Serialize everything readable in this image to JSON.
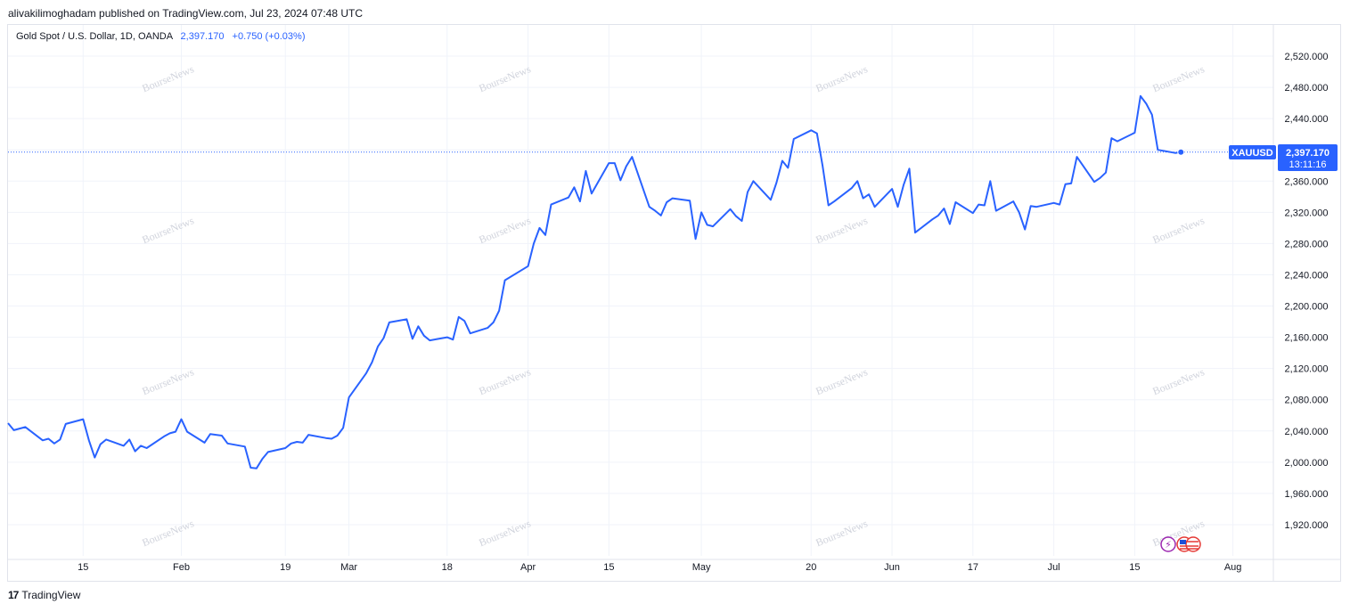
{
  "header": {
    "publisher_line": "alivakilimoghadam published on TradingView.com, Jul 23, 2024 07:48 UTC"
  },
  "legend": {
    "symbol_line": "Gold Spot / U.S. Dollar, 1D, OANDA",
    "last_value": "2,397.170",
    "change": "+0.750 (+0.03%)"
  },
  "price_label": {
    "ticker": "XAUUSD",
    "price": "2,397.170",
    "countdown": "13:11:16"
  },
  "footer": {
    "brand": "TradingView",
    "logo_text": "17"
  },
  "watermark": "BourseNews",
  "colors": {
    "line": "#2962ff",
    "grid": "#f0f3fa",
    "badge": "#2962ff"
  },
  "chart_data": {
    "type": "line",
    "title": "Gold Spot / U.S. Dollar, 1D, OANDA",
    "xlabel": "",
    "ylabel": "",
    "x_ticks": [
      {
        "date": "2024-01-15",
        "label": "15"
      },
      {
        "date": "2024-02-01",
        "label": "Feb"
      },
      {
        "date": "2024-02-19",
        "label": "19"
      },
      {
        "date": "2024-03-01",
        "label": "Mar"
      },
      {
        "date": "2024-03-18",
        "label": "18"
      },
      {
        "date": "2024-04-01",
        "label": "Apr"
      },
      {
        "date": "2024-04-15",
        "label": "15"
      },
      {
        "date": "2024-05-01",
        "label": "May"
      },
      {
        "date": "2024-05-20",
        "label": "20"
      },
      {
        "date": "2024-06-03",
        "label": "Jun"
      },
      {
        "date": "2024-06-17",
        "label": "17"
      },
      {
        "date": "2024-07-01",
        "label": "Jul"
      },
      {
        "date": "2024-07-15",
        "label": "15"
      },
      {
        "date": "2024-08-01",
        "label": "Aug"
      }
    ],
    "y_ticks": [
      "1,920.000",
      "1,960.000",
      "2,000.000",
      "2,040.000",
      "2,080.000",
      "2,120.000",
      "2,160.000",
      "2,200.000",
      "2,240.000",
      "2,280.000",
      "2,320.000",
      "2,360.000",
      "2,400.000",
      "2,440.000",
      "2,480.000",
      "2,520.000"
    ],
    "ylim": [
      1880,
      2560
    ],
    "xlim": [
      "2024-01-02",
      "2024-08-08"
    ],
    "grid": true,
    "series": [
      {
        "values": [
          {
            "x": "2024-01-02",
            "y": 2050
          },
          {
            "x": "2024-01-03",
            "y": 2041
          },
          {
            "x": "2024-01-05",
            "y": 2045
          },
          {
            "x": "2024-01-08",
            "y": 2028
          },
          {
            "x": "2024-01-09",
            "y": 2030
          },
          {
            "x": "2024-01-10",
            "y": 2024
          },
          {
            "x": "2024-01-11",
            "y": 2029
          },
          {
            "x": "2024-01-12",
            "y": 2049
          },
          {
            "x": "2024-01-15",
            "y": 2055
          },
          {
            "x": "2024-01-16",
            "y": 2028
          },
          {
            "x": "2024-01-17",
            "y": 2006
          },
          {
            "x": "2024-01-18",
            "y": 2023
          },
          {
            "x": "2024-01-19",
            "y": 2029
          },
          {
            "x": "2024-01-22",
            "y": 2021
          },
          {
            "x": "2024-01-23",
            "y": 2029
          },
          {
            "x": "2024-01-24",
            "y": 2014
          },
          {
            "x": "2024-01-25",
            "y": 2021
          },
          {
            "x": "2024-01-26",
            "y": 2018
          },
          {
            "x": "2024-01-29",
            "y": 2033
          },
          {
            "x": "2024-01-30",
            "y": 2037
          },
          {
            "x": "2024-01-31",
            "y": 2039
          },
          {
            "x": "2024-02-01",
            "y": 2055
          },
          {
            "x": "2024-02-02",
            "y": 2039
          },
          {
            "x": "2024-02-05",
            "y": 2025
          },
          {
            "x": "2024-02-06",
            "y": 2036
          },
          {
            "x": "2024-02-07",
            "y": 2035
          },
          {
            "x": "2024-02-08",
            "y": 2034
          },
          {
            "x": "2024-02-09",
            "y": 2024
          },
          {
            "x": "2024-02-12",
            "y": 2020
          },
          {
            "x": "2024-02-13",
            "y": 1993
          },
          {
            "x": "2024-02-14",
            "y": 1992
          },
          {
            "x": "2024-02-15",
            "y": 2004
          },
          {
            "x": "2024-02-16",
            "y": 2013
          },
          {
            "x": "2024-02-19",
            "y": 2018
          },
          {
            "x": "2024-02-20",
            "y": 2024
          },
          {
            "x": "2024-02-21",
            "y": 2026
          },
          {
            "x": "2024-02-22",
            "y": 2025
          },
          {
            "x": "2024-02-23",
            "y": 2035
          },
          {
            "x": "2024-02-26",
            "y": 2031
          },
          {
            "x": "2024-02-27",
            "y": 2030
          },
          {
            "x": "2024-02-28",
            "y": 2034
          },
          {
            "x": "2024-02-29",
            "y": 2044
          },
          {
            "x": "2024-03-01",
            "y": 2083
          },
          {
            "x": "2024-03-04",
            "y": 2114
          },
          {
            "x": "2024-03-05",
            "y": 2128
          },
          {
            "x": "2024-03-06",
            "y": 2148
          },
          {
            "x": "2024-03-07",
            "y": 2159
          },
          {
            "x": "2024-03-08",
            "y": 2179
          },
          {
            "x": "2024-03-11",
            "y": 2183
          },
          {
            "x": "2024-03-12",
            "y": 2158
          },
          {
            "x": "2024-03-13",
            "y": 2174
          },
          {
            "x": "2024-03-14",
            "y": 2162
          },
          {
            "x": "2024-03-15",
            "y": 2156
          },
          {
            "x": "2024-03-18",
            "y": 2160
          },
          {
            "x": "2024-03-19",
            "y": 2157
          },
          {
            "x": "2024-03-20",
            "y": 2186
          },
          {
            "x": "2024-03-21",
            "y": 2181
          },
          {
            "x": "2024-03-22",
            "y": 2165
          },
          {
            "x": "2024-03-25",
            "y": 2172
          },
          {
            "x": "2024-03-26",
            "y": 2179
          },
          {
            "x": "2024-03-27",
            "y": 2194
          },
          {
            "x": "2024-03-28",
            "y": 2233
          },
          {
            "x": "2024-04-01",
            "y": 2251
          },
          {
            "x": "2024-04-02",
            "y": 2280
          },
          {
            "x": "2024-04-03",
            "y": 2300
          },
          {
            "x": "2024-04-04",
            "y": 2291
          },
          {
            "x": "2024-04-05",
            "y": 2330
          },
          {
            "x": "2024-04-08",
            "y": 2339
          },
          {
            "x": "2024-04-09",
            "y": 2352
          },
          {
            "x": "2024-04-10",
            "y": 2334
          },
          {
            "x": "2024-04-11",
            "y": 2373
          },
          {
            "x": "2024-04-12",
            "y": 2344
          },
          {
            "x": "2024-04-15",
            "y": 2383
          },
          {
            "x": "2024-04-16",
            "y": 2383
          },
          {
            "x": "2024-04-17",
            "y": 2361
          },
          {
            "x": "2024-04-18",
            "y": 2379
          },
          {
            "x": "2024-04-19",
            "y": 2391
          },
          {
            "x": "2024-04-22",
            "y": 2327
          },
          {
            "x": "2024-04-23",
            "y": 2322
          },
          {
            "x": "2024-04-24",
            "y": 2316
          },
          {
            "x": "2024-04-25",
            "y": 2333
          },
          {
            "x": "2024-04-26",
            "y": 2338
          },
          {
            "x": "2024-04-29",
            "y": 2335
          },
          {
            "x": "2024-04-30",
            "y": 2286
          },
          {
            "x": "2024-05-01",
            "y": 2320
          },
          {
            "x": "2024-05-02",
            "y": 2304
          },
          {
            "x": "2024-05-03",
            "y": 2302
          },
          {
            "x": "2024-05-06",
            "y": 2324
          },
          {
            "x": "2024-05-07",
            "y": 2315
          },
          {
            "x": "2024-05-08",
            "y": 2309
          },
          {
            "x": "2024-05-09",
            "y": 2346
          },
          {
            "x": "2024-05-10",
            "y": 2360
          },
          {
            "x": "2024-05-13",
            "y": 2336
          },
          {
            "x": "2024-05-14",
            "y": 2358
          },
          {
            "x": "2024-05-15",
            "y": 2386
          },
          {
            "x": "2024-05-16",
            "y": 2377
          },
          {
            "x": "2024-05-17",
            "y": 2414
          },
          {
            "x": "2024-05-20",
            "y": 2425
          },
          {
            "x": "2024-05-21",
            "y": 2421
          },
          {
            "x": "2024-05-22",
            "y": 2379
          },
          {
            "x": "2024-05-23",
            "y": 2329
          },
          {
            "x": "2024-05-24",
            "y": 2334
          },
          {
            "x": "2024-05-27",
            "y": 2351
          },
          {
            "x": "2024-05-28",
            "y": 2360
          },
          {
            "x": "2024-05-29",
            "y": 2338
          },
          {
            "x": "2024-05-30",
            "y": 2343
          },
          {
            "x": "2024-05-31",
            "y": 2327
          },
          {
            "x": "2024-06-03",
            "y": 2350
          },
          {
            "x": "2024-06-04",
            "y": 2327
          },
          {
            "x": "2024-06-05",
            "y": 2355
          },
          {
            "x": "2024-06-06",
            "y": 2376
          },
          {
            "x": "2024-06-07",
            "y": 2294
          },
          {
            "x": "2024-06-10",
            "y": 2311
          },
          {
            "x": "2024-06-11",
            "y": 2316
          },
          {
            "x": "2024-06-12",
            "y": 2325
          },
          {
            "x": "2024-06-13",
            "y": 2305
          },
          {
            "x": "2024-06-14",
            "y": 2333
          },
          {
            "x": "2024-06-17",
            "y": 2319
          },
          {
            "x": "2024-06-18",
            "y": 2330
          },
          {
            "x": "2024-06-19",
            "y": 2329
          },
          {
            "x": "2024-06-20",
            "y": 2360
          },
          {
            "x": "2024-06-21",
            "y": 2322
          },
          {
            "x": "2024-06-24",
            "y": 2334
          },
          {
            "x": "2024-06-25",
            "y": 2320
          },
          {
            "x": "2024-06-26",
            "y": 2298
          },
          {
            "x": "2024-06-27",
            "y": 2328
          },
          {
            "x": "2024-06-28",
            "y": 2327
          },
          {
            "x": "2024-07-01",
            "y": 2332
          },
          {
            "x": "2024-07-02",
            "y": 2330
          },
          {
            "x": "2024-07-03",
            "y": 2356
          },
          {
            "x": "2024-07-04",
            "y": 2357
          },
          {
            "x": "2024-07-05",
            "y": 2391
          },
          {
            "x": "2024-07-08",
            "y": 2359
          },
          {
            "x": "2024-07-09",
            "y": 2364
          },
          {
            "x": "2024-07-10",
            "y": 2371
          },
          {
            "x": "2024-07-11",
            "y": 2415
          },
          {
            "x": "2024-07-12",
            "y": 2411
          },
          {
            "x": "2024-07-15",
            "y": 2422
          },
          {
            "x": "2024-07-16",
            "y": 2469
          },
          {
            "x": "2024-07-17",
            "y": 2459
          },
          {
            "x": "2024-07-18",
            "y": 2445
          },
          {
            "x": "2024-07-19",
            "y": 2400
          },
          {
            "x": "2024-07-22",
            "y": 2396
          },
          {
            "x": "2024-07-23",
            "y": 2397.17
          }
        ]
      }
    ]
  }
}
